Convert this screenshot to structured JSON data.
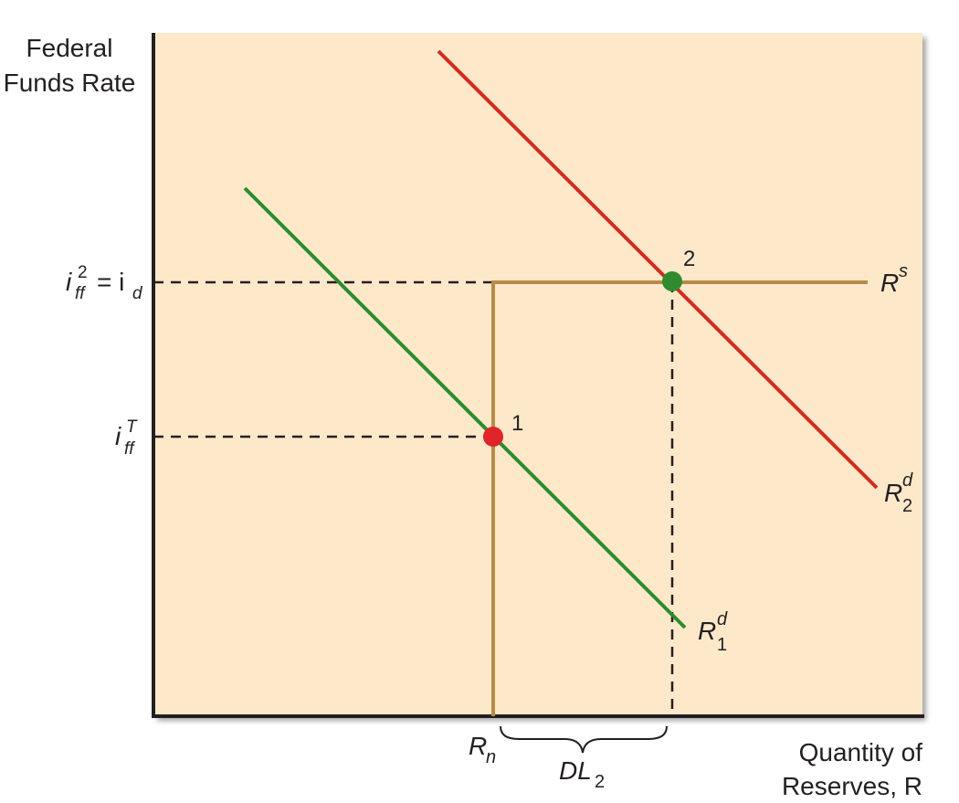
{
  "axes": {
    "y_label_line1": "Federal",
    "y_label_line2": "Funds Rate",
    "x_label_line1": "Quantity of",
    "x_label_line2": "Reserves, R"
  },
  "y_ticks": {
    "upper": {
      "main": "i",
      "sub": "ff",
      "sup": "2",
      "rest": "= i",
      "rest_sub": "d"
    },
    "lower": {
      "main": "i",
      "sub": "ff",
      "sup": "T"
    }
  },
  "x_ticks": {
    "rn": {
      "main": "R",
      "sub": "n"
    },
    "dl": {
      "main": "DL",
      "sub": "2"
    }
  },
  "curves": {
    "supply": {
      "main": "R",
      "sup": "s"
    },
    "demand1": {
      "main": "R",
      "sub": "1",
      "sup": "d"
    },
    "demand2": {
      "main": "R",
      "sub": "2",
      "sup": "d"
    }
  },
  "points": {
    "p1": "1",
    "p2": "2"
  },
  "colors": {
    "background": "#fde9c9",
    "axis": "#231f20",
    "supply": "#b88a4a",
    "demand1": "#2e8b2e",
    "demand2": "#d42b1f",
    "point1": "#e0242a",
    "point2": "#2e8b2e",
    "guide": "#231f20"
  }
}
